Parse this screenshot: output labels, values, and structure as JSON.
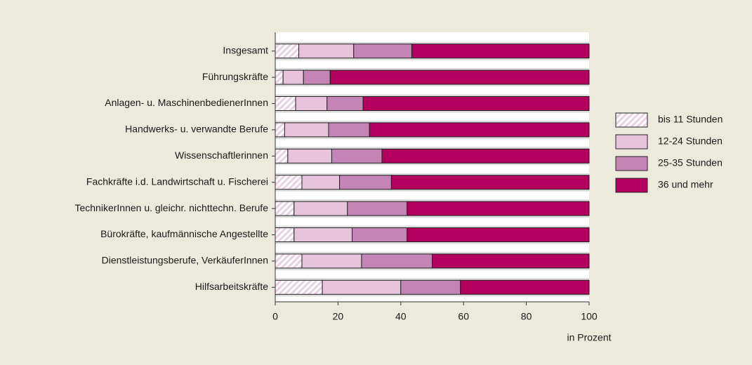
{
  "chart_data": {
    "type": "stacked-barh",
    "categories": [
      "Insgesamt",
      "Führungskräfte",
      "Anlagen- u. MaschinenbedienerInnen",
      "Handwerks- u. verwandte Berufe",
      "Wissenschaftlerinnen",
      "Fachkräfte i.d. Landwirtschaft u. Fischerei",
      "TechnikerInnen u. gleichr. nichttechn. Berufe",
      "Bürokräfte, kaufmännische Angestellte",
      "Dienstleistungsberufe, VerkäuferInnen",
      "Hilfsarbeitskräfte"
    ],
    "series": [
      {
        "name": "bis 11 Stunden",
        "color": "#ead0e2",
        "hatch": true,
        "values": [
          7.5,
          2.5,
          6.5,
          3,
          4,
          8.5,
          6,
          6,
          8.5,
          15
        ]
      },
      {
        "name": "12-24 Stunden",
        "color": "#e8c3dc",
        "values": [
          17.5,
          6.5,
          10,
          14,
          14,
          12,
          17,
          18.5,
          19,
          25
        ]
      },
      {
        "name": "25-35 Stunden",
        "color": "#c485b6",
        "values": [
          18.5,
          8.5,
          11.5,
          13,
          16,
          16.5,
          19,
          17.5,
          22.5,
          19
        ]
      },
      {
        "name": "36 und mehr",
        "color": "#b3005f",
        "values": [
          56.5,
          82.5,
          72,
          70,
          66,
          63,
          58,
          58,
          50,
          41
        ]
      }
    ],
    "xlabel": "in Prozent",
    "xlim": [
      0,
      100
    ],
    "xticks": [
      0,
      20,
      40,
      60,
      80,
      100
    ],
    "legend": "right"
  }
}
